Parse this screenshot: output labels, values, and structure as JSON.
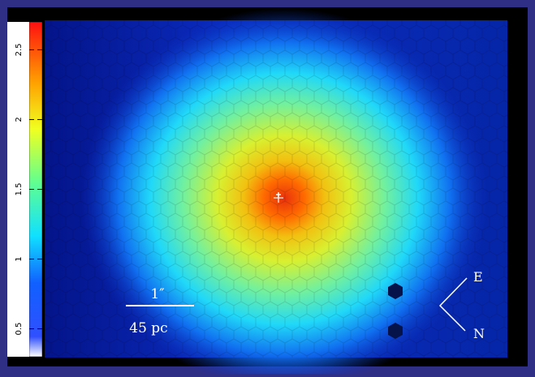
{
  "chart_data": {
    "type": "colorbar",
    "ylim": [
      0.3,
      2.7
    ],
    "yticks": [
      0.5,
      1,
      1.5,
      2,
      2.5
    ]
  },
  "scale_bar": {
    "angle": "1″",
    "distance": "45 pc"
  },
  "compass": {
    "east": "E",
    "north": "N"
  }
}
